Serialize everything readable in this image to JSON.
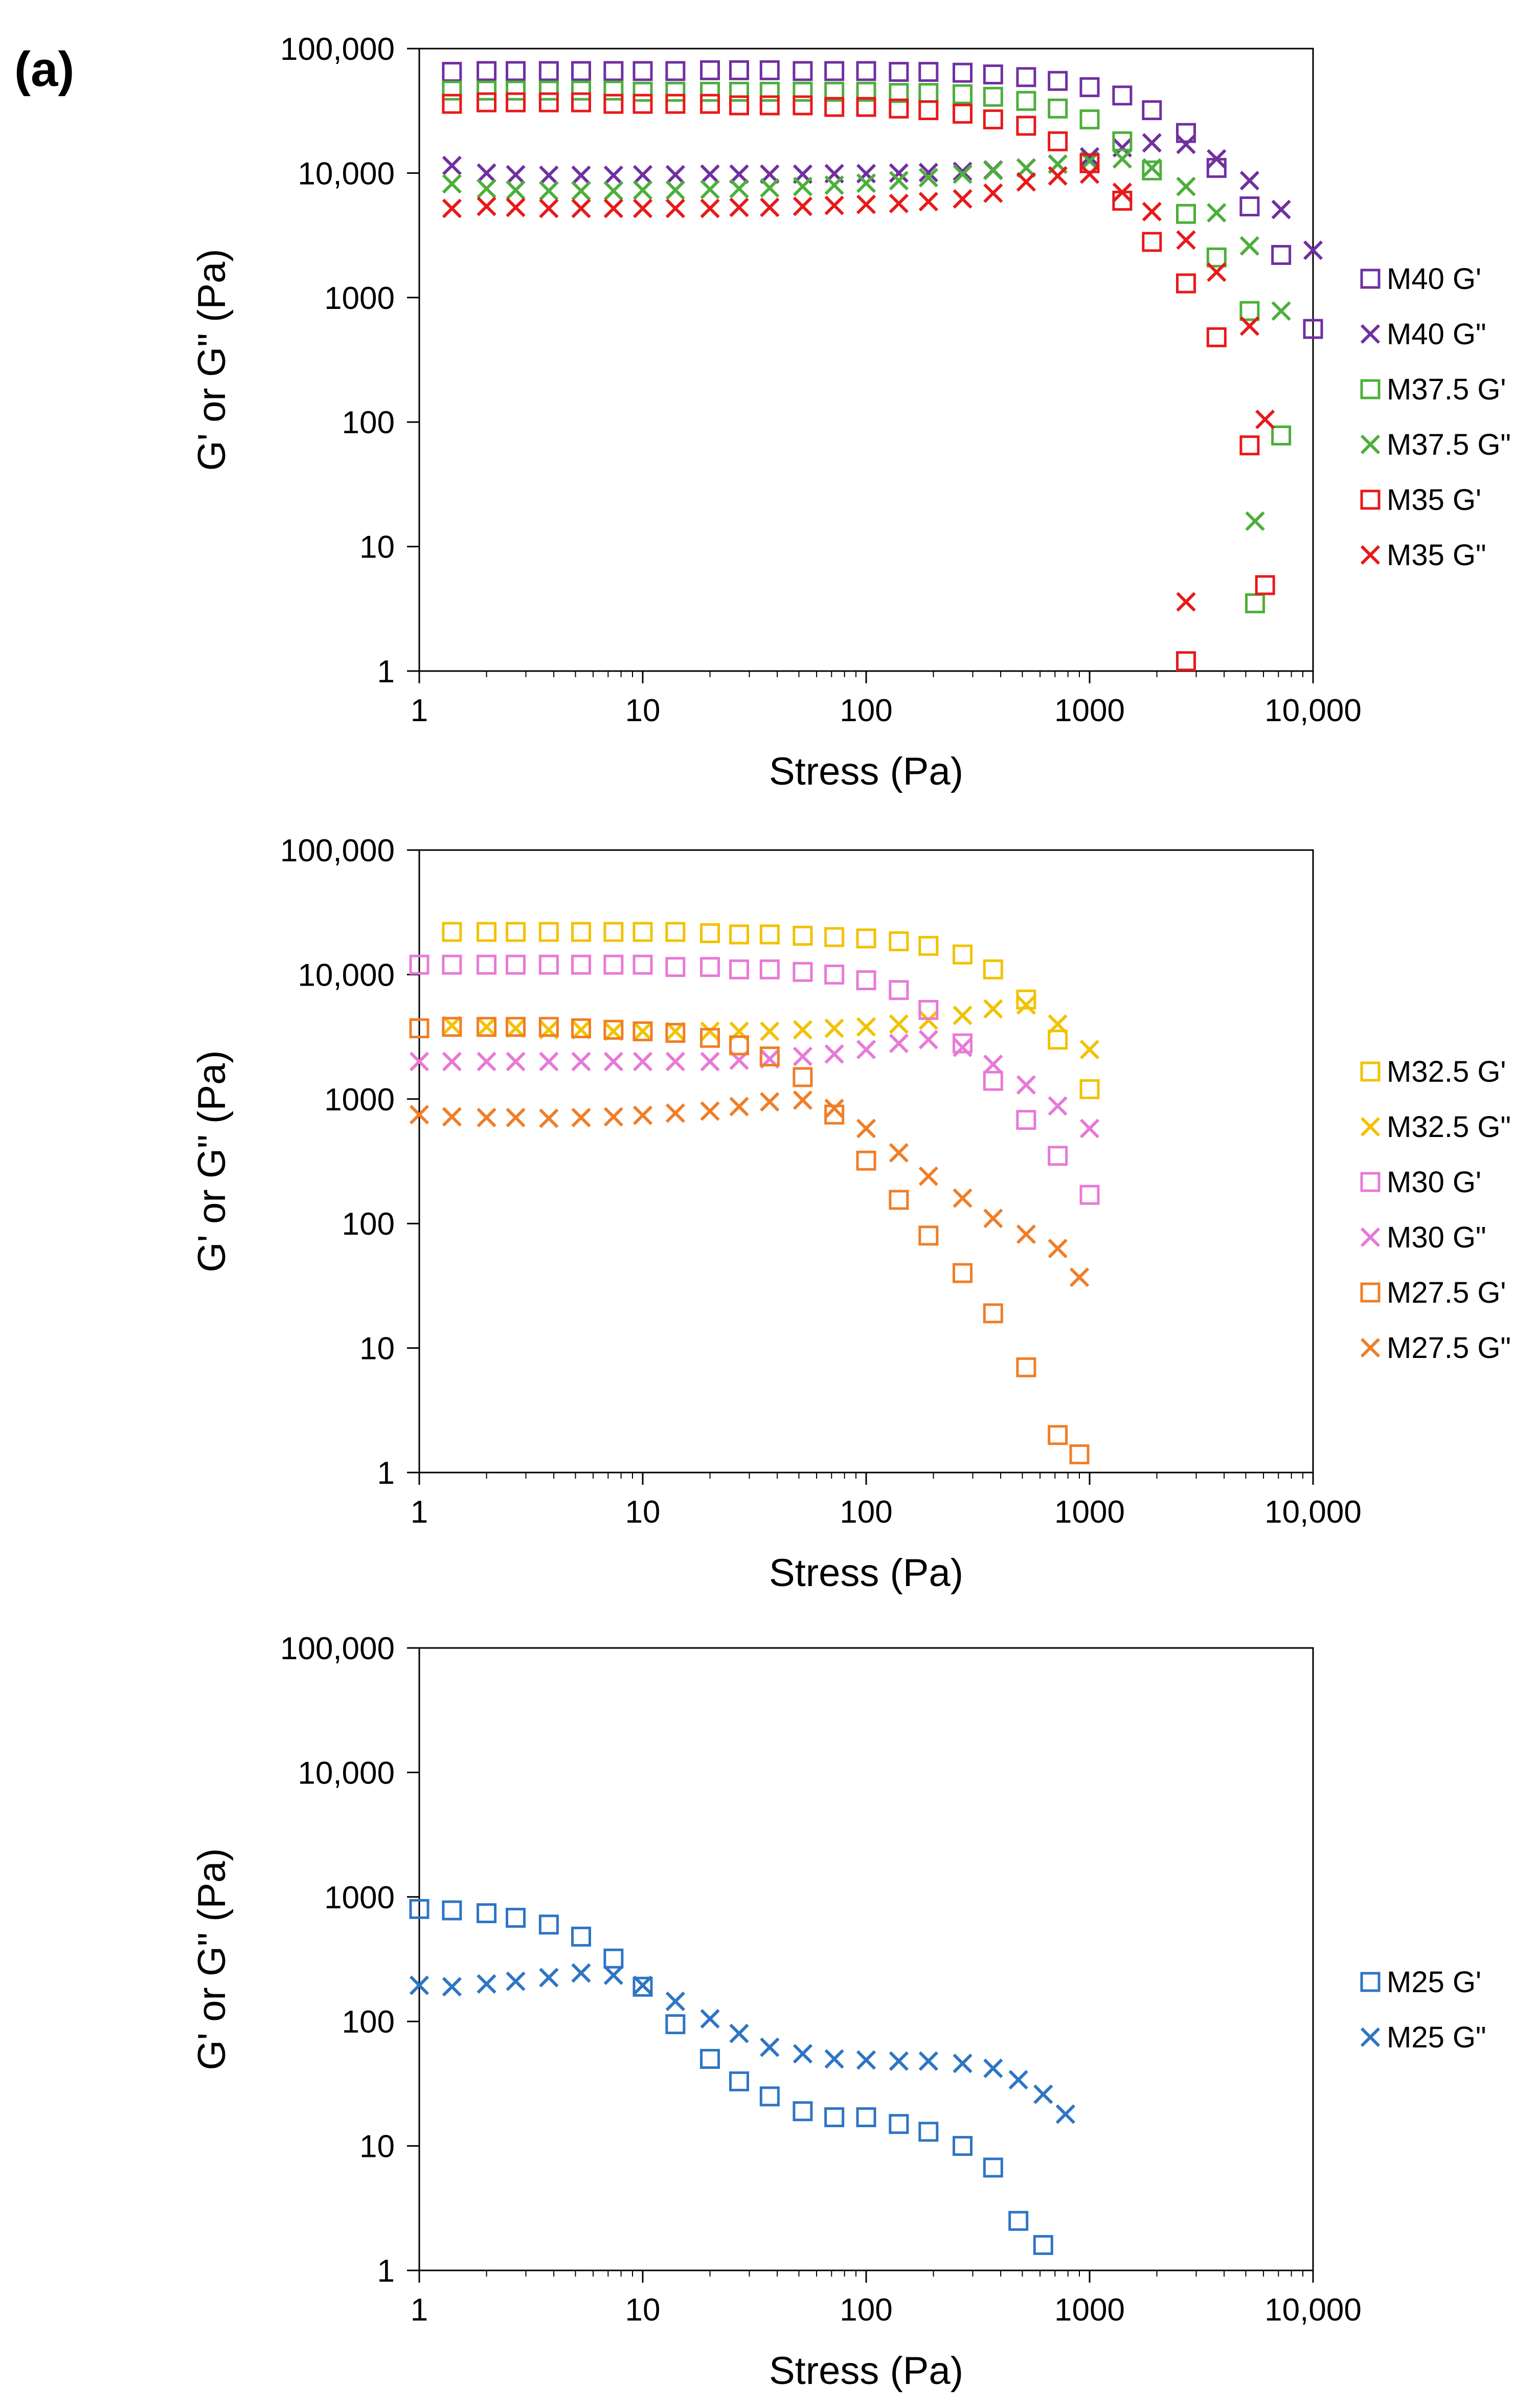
{
  "figure": {
    "panel_label": "(a)"
  },
  "chart_data": [
    {
      "type": "scatter",
      "xscale": "log",
      "yscale": "log",
      "xlim": [
        1,
        10000
      ],
      "ylim": [
        1,
        100000
      ],
      "xlabel": "Stress (Pa)",
      "ylabel": "G' or G\" (Pa)",
      "xticks": [
        1,
        10,
        100,
        1000,
        10000
      ],
      "xtick_labels": [
        "1",
        "10",
        "100",
        "1000",
        "10,000"
      ],
      "yticks": [
        1,
        10,
        100,
        1000,
        10000,
        100000
      ],
      "ytick_labels": [
        "1",
        "10",
        "100",
        "1000",
        "10,000",
        "100,000"
      ],
      "grid": false,
      "legend_position": "right",
      "series": [
        {
          "name": "M40 G'",
          "marker": "square",
          "color": "#7030A0",
          "x": [
            1.4,
            2,
            2.7,
            3.8,
            5.3,
            7.4,
            10,
            14,
            20,
            27,
            37,
            52,
            72,
            100,
            140,
            190,
            270,
            370,
            520,
            720,
            1000,
            1400,
            1900,
            2700,
            3700,
            5200,
            7200,
            10000
          ],
          "y": [
            65000,
            66000,
            66000,
            66000,
            66000,
            66000,
            66000,
            66000,
            67000,
            67000,
            67000,
            66000,
            66000,
            66000,
            65000,
            65000,
            64000,
            62000,
            59000,
            55000,
            49000,
            42000,
            32000,
            21000,
            11000,
            5400,
            2200,
            560
          ]
        },
        {
          "name": "M40 G\"",
          "marker": "x",
          "color": "#7030A0",
          "x": [
            1.4,
            2,
            2.7,
            3.8,
            5.3,
            7.4,
            10,
            14,
            20,
            27,
            37,
            52,
            72,
            100,
            140,
            190,
            270,
            370,
            520,
            720,
            1000,
            1400,
            1900,
            2700,
            3700,
            5200,
            7200,
            10000
          ],
          "y": [
            11500,
            10000,
            9700,
            9600,
            9600,
            9600,
            9700,
            9700,
            9800,
            9800,
            9800,
            9800,
            9900,
            9900,
            10000,
            10100,
            10300,
            10600,
            11000,
            11800,
            13500,
            16000,
            17500,
            17000,
            13000,
            8700,
            5100,
            2400
          ]
        },
        {
          "name": "M37.5 G'",
          "marker": "square",
          "color": "#4CAF3A",
          "x": [
            1.4,
            2,
            2.7,
            3.8,
            5.3,
            7.4,
            10,
            14,
            20,
            27,
            37,
            52,
            72,
            100,
            140,
            190,
            270,
            370,
            520,
            720,
            1000,
            1400,
            1900,
            2700,
            3700,
            5200,
            5500,
            7200
          ],
          "y": [
            46000,
            46000,
            46000,
            46000,
            46000,
            46000,
            45000,
            45000,
            45000,
            45000,
            45000,
            45000,
            45000,
            45000,
            44000,
            44000,
            43000,
            41000,
            38000,
            33000,
            27000,
            18000,
            10500,
            4700,
            2100,
            780,
            3.5,
            78
          ]
        },
        {
          "name": "M37.5 G\"",
          "marker": "x",
          "color": "#4CAF3A",
          "x": [
            1.4,
            2,
            2.7,
            3.8,
            5.3,
            7.4,
            10,
            14,
            20,
            27,
            37,
            52,
            72,
            100,
            140,
            190,
            270,
            370,
            520,
            720,
            1000,
            1400,
            1900,
            2700,
            3700,
            5200,
            5500,
            7200
          ],
          "y": [
            8200,
            7500,
            7300,
            7200,
            7200,
            7200,
            7300,
            7300,
            7400,
            7500,
            7600,
            7800,
            8000,
            8300,
            8700,
            9200,
            9800,
            10500,
            11000,
            11800,
            12500,
            13000,
            11000,
            7800,
            4800,
            2600,
            16,
            780
          ]
        },
        {
          "name": "M35 G'",
          "marker": "square",
          "color": "#E8191A",
          "x": [
            1.4,
            2,
            2.7,
            3.8,
            5.3,
            7.4,
            10,
            14,
            20,
            27,
            37,
            52,
            72,
            100,
            140,
            190,
            270,
            370,
            520,
            720,
            1000,
            1400,
            1900,
            2700,
            2700,
            3700,
            5200,
            6100
          ],
          "y": [
            36000,
            37000,
            37000,
            37000,
            37000,
            36000,
            36000,
            36000,
            36000,
            35000,
            35000,
            35000,
            34000,
            34000,
            33000,
            32000,
            30000,
            27000,
            24000,
            18000,
            12000,
            6000,
            2800,
            1300,
            1.2,
            480,
            65,
            4.9
          ]
        },
        {
          "name": "M35 G\"",
          "marker": "x",
          "color": "#E8191A",
          "x": [
            1.4,
            2,
            2.7,
            3.8,
            5.3,
            7.4,
            10,
            14,
            20,
            27,
            37,
            52,
            72,
            100,
            140,
            190,
            270,
            370,
            520,
            720,
            1000,
            1400,
            1900,
            2700,
            2700,
            3700,
            5200,
            6100
          ],
          "y": [
            5200,
            5400,
            5300,
            5200,
            5200,
            5200,
            5200,
            5200,
            5200,
            5300,
            5300,
            5400,
            5500,
            5600,
            5700,
            5900,
            6200,
            6900,
            8500,
            9500,
            9800,
            7000,
            4900,
            2900,
            3.6,
            1600,
            590,
            105
          ]
        }
      ]
    },
    {
      "type": "scatter",
      "xscale": "log",
      "yscale": "log",
      "xlim": [
        1,
        10000
      ],
      "ylim": [
        1,
        100000
      ],
      "xlabel": "Stress (Pa)",
      "ylabel": "G' or G\" (Pa)",
      "xticks": [
        1,
        10,
        100,
        1000,
        10000
      ],
      "xtick_labels": [
        "1",
        "10",
        "100",
        "1000",
        "10,000"
      ],
      "yticks": [
        1,
        10,
        100,
        1000,
        10000,
        100000
      ],
      "ytick_labels": [
        "1",
        "10",
        "100",
        "1000",
        "10,000",
        "100,000"
      ],
      "grid": false,
      "legend_position": "right",
      "series": [
        {
          "name": "M32.5 G'",
          "marker": "square",
          "color": "#F2C200",
          "x": [
            1.4,
            2,
            2.7,
            3.8,
            5.3,
            7.4,
            10,
            14,
            20,
            27,
            37,
            52,
            72,
            100,
            140,
            190,
            270,
            370,
            520,
            720,
            1000
          ],
          "y": [
            22000,
            22000,
            22000,
            22000,
            22000,
            22000,
            22000,
            22000,
            21500,
            21000,
            21000,
            20500,
            20000,
            19500,
            18500,
            17000,
            14500,
            11000,
            6300,
            3000,
            1200
          ]
        },
        {
          "name": "M32.5 G\"",
          "marker": "x",
          "color": "#F2C200",
          "x": [
            1.4,
            2,
            2.7,
            3.8,
            5.3,
            7.4,
            10,
            14,
            20,
            27,
            37,
            52,
            72,
            100,
            140,
            190,
            270,
            370,
            520,
            720,
            1000
          ],
          "y": [
            3900,
            3800,
            3700,
            3600,
            3600,
            3500,
            3500,
            3500,
            3500,
            3500,
            3500,
            3600,
            3700,
            3800,
            4000,
            4300,
            4700,
            5300,
            5700,
            4000,
            2500
          ]
        },
        {
          "name": "M30 G'",
          "marker": "square",
          "color": "#E879D6",
          "x": [
            1,
            1.4,
            2,
            2.7,
            3.8,
            5.3,
            7.4,
            10,
            14,
            20,
            27,
            37,
            52,
            72,
            100,
            140,
            190,
            270,
            370,
            520,
            720,
            1000
          ],
          "y": [
            12000,
            12000,
            12000,
            12000,
            12000,
            12000,
            12000,
            12000,
            11500,
            11500,
            11000,
            11000,
            10500,
            10000,
            9000,
            7500,
            5200,
            2800,
            1400,
            680,
            350,
            170
          ]
        },
        {
          "name": "M30 G\"",
          "marker": "x",
          "color": "#E879D6",
          "x": [
            1,
            1.4,
            2,
            2.7,
            3.8,
            5.3,
            7.4,
            10,
            14,
            20,
            27,
            37,
            52,
            72,
            100,
            140,
            190,
            270,
            370,
            520,
            720,
            1000
          ],
          "y": [
            2000,
            2000,
            2000,
            2000,
            2000,
            2000,
            2000,
            2000,
            2000,
            2000,
            2050,
            2100,
            2200,
            2300,
            2500,
            2800,
            3000,
            2600,
            1900,
            1300,
            880,
            580
          ]
        },
        {
          "name": "M27.5 G'",
          "marker": "square",
          "color": "#F07E26",
          "x": [
            1,
            1.4,
            2,
            2.7,
            3.8,
            5.3,
            7.4,
            10,
            14,
            20,
            27,
            37,
            52,
            72,
            100,
            140,
            190,
            270,
            370,
            520,
            720,
            900
          ],
          "y": [
            3700,
            3800,
            3800,
            3800,
            3800,
            3700,
            3600,
            3500,
            3400,
            3100,
            2700,
            2200,
            1500,
            750,
            320,
            155,
            80,
            40,
            19,
            7,
            2,
            1.4
          ]
        },
        {
          "name": "M27.5 G\"",
          "marker": "x",
          "color": "#F07E26",
          "x": [
            1,
            1.4,
            2,
            2.7,
            3.8,
            5.3,
            7.4,
            10,
            14,
            20,
            27,
            37,
            52,
            72,
            100,
            140,
            190,
            270,
            370,
            520,
            720,
            900
          ],
          "y": [
            750,
            720,
            710,
            710,
            700,
            710,
            720,
            740,
            770,
            800,
            870,
            950,
            980,
            840,
            580,
            370,
            240,
            160,
            110,
            82,
            63,
            37
          ]
        }
      ]
    },
    {
      "type": "scatter",
      "xscale": "log",
      "yscale": "log",
      "xlim": [
        1,
        10000
      ],
      "ylim": [
        1,
        100000
      ],
      "xlabel": "Stress (Pa)",
      "ylabel": "G' or G\" (Pa)",
      "xticks": [
        1,
        10,
        100,
        1000,
        10000
      ],
      "xtick_labels": [
        "1",
        "10",
        "100",
        "1000",
        "10,000"
      ],
      "yticks": [
        1,
        10,
        100,
        1000,
        10000,
        100000
      ],
      "ytick_labels": [
        "1",
        "10",
        "100",
        "1000",
        "10,000",
        "100,000"
      ],
      "grid": false,
      "legend_position": "right",
      "series": [
        {
          "name": "M25 G'",
          "marker": "square",
          "color": "#2E75C4",
          "x": [
            1,
            1.4,
            2,
            2.7,
            3.8,
            5.3,
            7.4,
            10,
            14,
            20,
            27,
            37,
            52,
            72,
            100,
            140,
            190,
            270,
            370,
            480,
            620
          ],
          "y": [
            800,
            780,
            740,
            680,
            600,
            480,
            320,
            190,
            95,
            50,
            33,
            25,
            19,
            17,
            17,
            15,
            13,
            10,
            6.7,
            2.5,
            1.6
          ]
        },
        {
          "name": "M25 G\"",
          "marker": "x",
          "color": "#2E75C4",
          "x": [
            1,
            1.4,
            2,
            2.7,
            3.8,
            5.3,
            7.4,
            10,
            14,
            20,
            27,
            37,
            52,
            72,
            100,
            140,
            190,
            270,
            370,
            480,
            620,
            780
          ],
          "y": [
            195,
            190,
            200,
            210,
            225,
            245,
            235,
            195,
            145,
            105,
            80,
            62,
            55,
            50,
            49,
            48,
            48,
            46,
            42,
            34,
            26,
            18
          ]
        }
      ]
    }
  ]
}
